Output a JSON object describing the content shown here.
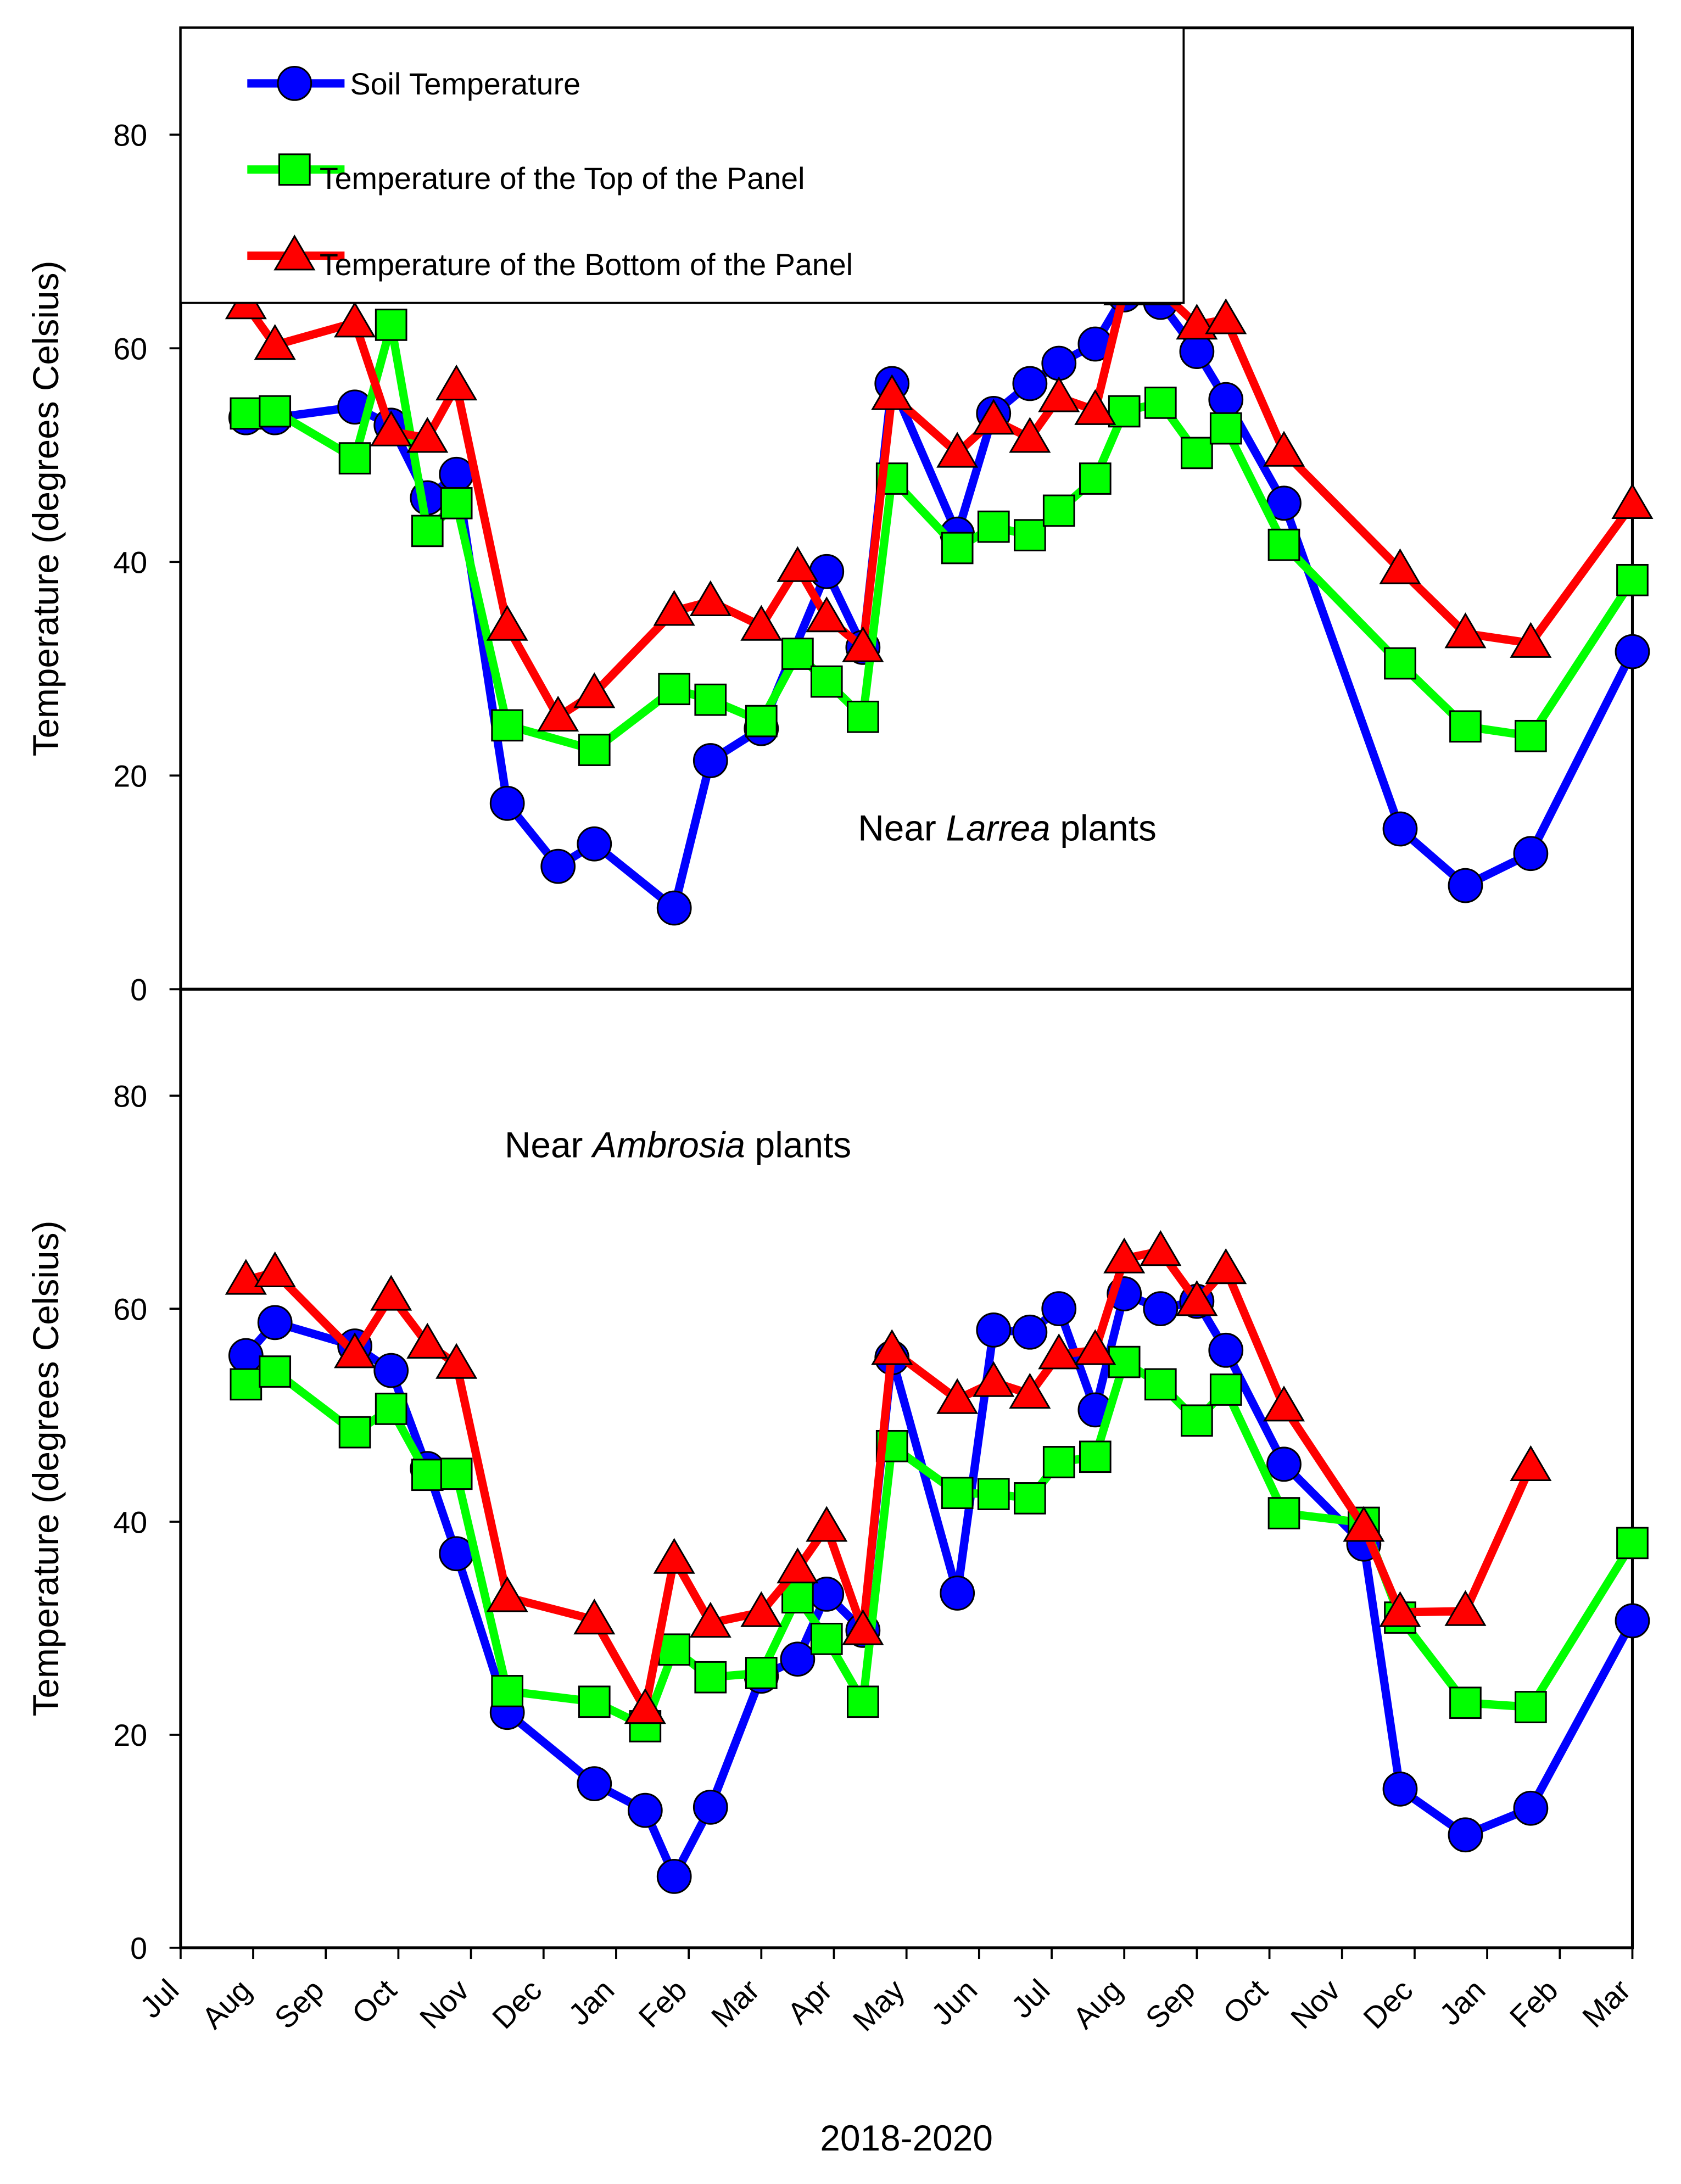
{
  "chart_data": [
    {
      "type": "line",
      "ylabel": "Temperature (degrees Celsius)",
      "annotation": [
        "Near",
        "Larrea",
        "plants"
      ],
      "xlim": [
        0,
        20
      ],
      "ylim": [
        0,
        90
      ],
      "yticks": [
        0,
        20,
        40,
        60,
        80
      ],
      "legend": "upper left",
      "series": [
        {
          "name": "Soil Temperature",
          "color": "#0000ff",
          "marker": "circle",
          "x": [
            0.9,
            1.3,
            2.4,
            2.9,
            3.4,
            3.8,
            4.5,
            5.2,
            5.7,
            6.8,
            7.3,
            8.0,
            8.9,
            9.4,
            9.8,
            10.7,
            11.2,
            11.7,
            12.1,
            12.6,
            13.0,
            13.5,
            14.0,
            14.4,
            15.2,
            16.8,
            17.7,
            18.6,
            20
          ],
          "values": [
            53.5,
            53.5,
            54.5,
            52.8,
            46,
            48.2,
            17.4,
            11.5,
            13.6,
            7.6,
            21.4,
            24.4,
            39.1,
            32,
            56.7,
            42.6,
            53.9,
            56.7,
            58.6,
            60.4,
            65,
            64.3,
            59.7,
            55.2,
            45.5,
            15,
            9.7,
            12.7,
            31.6
          ]
        },
        {
          "name": "Temperature of the Top of the Panel",
          "color": "#00ff00",
          "marker": "square",
          "x": [
            0.9,
            1.3,
            2.4,
            2.9,
            3.4,
            3.8,
            4.5,
            5.7,
            6.8,
            7.3,
            8.0,
            8.5,
            8.9,
            9.4,
            9.8,
            10.7,
            11.2,
            11.7,
            12.1,
            12.6,
            13.0,
            13.5,
            14.0,
            14.4,
            15.2,
            16.8,
            17.7,
            18.6,
            20
          ],
          "values": [
            53.9,
            54.1,
            49.7,
            62.2,
            42.9,
            45.5,
            24.7,
            22.4,
            28.1,
            27.1,
            25.1,
            31.4,
            28.8,
            25.5,
            47.8,
            41.3,
            43.3,
            42.5,
            44.8,
            47.8,
            54.1,
            54.9,
            50.2,
            52.5,
            41.6,
            30.5,
            24.6,
            23.7,
            38.3
          ]
        },
        {
          "name": "Temperature of the Bottom of the Panel",
          "color": "#ff0000",
          "marker": "triangle",
          "x": [
            0.9,
            1.3,
            2.4,
            2.9,
            3.4,
            3.8,
            4.5,
            5.2,
            5.7,
            6.8,
            7.3,
            8.0,
            8.5,
            8.9,
            9.4,
            9.8,
            10.7,
            11.2,
            11.7,
            12.1,
            12.6,
            13.0,
            13.5,
            14.0,
            14.4,
            15.2,
            16.8,
            17.7,
            18.6,
            20
          ],
          "values": [
            64.1,
            60.3,
            62.4,
            52.2,
            51.6,
            56.5,
            34,
            25.5,
            27.7,
            35.4,
            36.3,
            34,
            39.5,
            34.8,
            32,
            55.6,
            50.2,
            53.3,
            51.6,
            55.4,
            54.2,
            65.4,
            65.4,
            62.2,
            62.7,
            50.3,
            39.3,
            33.3,
            32.4,
            45.4
          ]
        }
      ]
    },
    {
      "type": "line",
      "ylabel": "Temperature (degrees Celsius)",
      "xlabel": "2018-2020",
      "annotation": [
        "Near",
        "Ambrosia",
        "plants"
      ],
      "xlim": [
        0,
        20
      ],
      "ylim": [
        0,
        90
      ],
      "yticks": [
        0,
        20,
        40,
        60,
        80
      ],
      "xticks": [
        {
          "value": 0,
          "label": "Jul"
        },
        {
          "value": 1,
          "label": "Aug"
        },
        {
          "value": 2,
          "label": "Sep"
        },
        {
          "value": 3,
          "label": "Oct"
        },
        {
          "value": 4,
          "label": "Nov"
        },
        {
          "value": 5,
          "label": "Dec"
        },
        {
          "value": 6,
          "label": "Jan"
        },
        {
          "value": 7,
          "label": "Feb"
        },
        {
          "value": 8,
          "label": "Mar"
        },
        {
          "value": 9,
          "label": "Apr"
        },
        {
          "value": 10,
          "label": "May"
        },
        {
          "value": 11,
          "label": "Jun"
        },
        {
          "value": 12,
          "label": "Jul"
        },
        {
          "value": 13,
          "label": "Aug"
        },
        {
          "value": 14,
          "label": "Sep"
        },
        {
          "value": 15,
          "label": "Oct"
        },
        {
          "value": 16,
          "label": "Nov"
        },
        {
          "value": 17,
          "label": "Dec"
        },
        {
          "value": 18,
          "label": "Jan"
        },
        {
          "value": 19,
          "label": "Feb"
        },
        {
          "value": 20,
          "label": "Mar"
        }
      ],
      "series": [
        {
          "color": "#0000ff",
          "marker": "circle",
          "x": [
            0.9,
            1.3,
            2.4,
            2.9,
            3.4,
            3.8,
            4.5,
            5.7,
            6.4,
            6.8,
            7.3,
            8.0,
            8.5,
            8.9,
            9.4,
            9.8,
            10.7,
            11.2,
            11.7,
            12.1,
            12.6,
            13.0,
            13.5,
            14.0,
            14.4,
            15.2,
            16.3,
            16.8,
            17.7,
            18.6,
            20
          ],
          "values": [
            55.6,
            58.7,
            56.5,
            54.2,
            45,
            37,
            22.1,
            15.4,
            12.9,
            6.7,
            13.2,
            25.5,
            27.1,
            33.2,
            29.8,
            55.4,
            33.3,
            58,
            57.8,
            60,
            50.5,
            61.4,
            60,
            60.7,
            56.1,
            45.4,
            37.9,
            14.9,
            10.6,
            13.1,
            30.7
          ]
        },
        {
          "color": "#00ff00",
          "marker": "square",
          "x": [
            0.9,
            1.3,
            2.4,
            2.9,
            3.4,
            3.8,
            4.5,
            5.7,
            6.4,
            6.8,
            7.3,
            8.0,
            8.5,
            8.9,
            9.4,
            9.8,
            10.7,
            11.2,
            11.7,
            12.1,
            12.6,
            13.0,
            13.5,
            14.0,
            14.4,
            15.2,
            16.3,
            16.8,
            17.7,
            18.6,
            20
          ],
          "values": [
            52.9,
            54.1,
            48.4,
            50.6,
            44.4,
            44.5,
            24.1,
            23.1,
            20.8,
            28,
            25.4,
            25.8,
            32.9,
            29,
            23.1,
            47.1,
            42.7,
            42.6,
            42.2,
            45.6,
            46.1,
            55,
            52.9,
            49.5,
            52.4,
            40.8,
            39.9,
            31,
            23,
            22.6,
            38
          ]
        },
        {
          "color": "#ff0000",
          "marker": "triangle",
          "x": [
            0.9,
            1.3,
            2.4,
            2.9,
            3.4,
            3.8,
            4.5,
            5.7,
            6.4,
            6.8,
            7.3,
            8.0,
            8.5,
            8.9,
            9.4,
            9.8,
            10.7,
            11.2,
            11.7,
            12.1,
            12.6,
            13.0,
            13.5,
            14.0,
            14.4,
            15.2,
            16.3,
            16.8,
            17.7,
            18.6
          ],
          "values": [
            62.7,
            63.4,
            55.8,
            61.2,
            56.7,
            54.8,
            32.9,
            30.8,
            22.4,
            36.5,
            30.5,
            31.5,
            35.6,
            39.5,
            29.8,
            56.1,
            51.5,
            53.1,
            52,
            55.7,
            56.1,
            64.7,
            65.4,
            60.7,
            63.7,
            50.8,
            39.5,
            31.5,
            31.6,
            45.2
          ]
        }
      ]
    }
  ]
}
